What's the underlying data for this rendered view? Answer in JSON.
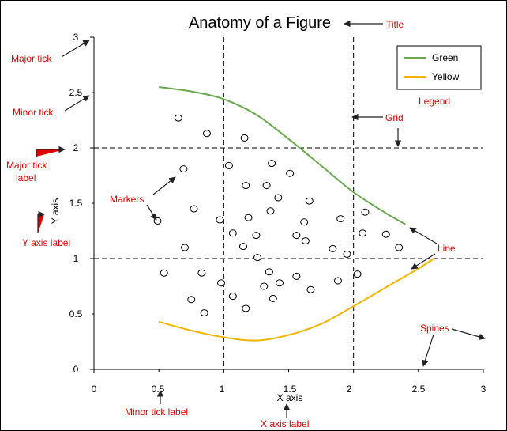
{
  "chart_data": {
    "type": "line",
    "title": "Anatomy of a Figure",
    "xlabel": "X axis",
    "ylabel": "Y axis",
    "xlim": [
      0,
      3
    ],
    "ylim": [
      0,
      3
    ],
    "x_major_ticks": [
      0,
      1,
      2,
      3
    ],
    "x_minor_tick_labels": [
      0.5,
      1.5,
      2.5
    ],
    "y_major_ticks": [
      0,
      1,
      2,
      3
    ],
    "y_minor_tick_labels": [
      0.5,
      1.5,
      2.5
    ],
    "x_tick_labels": [
      "0",
      "0.5",
      "1",
      "1.5",
      "2",
      "2.5",
      "3"
    ],
    "y_tick_labels": [
      "0",
      "0.5",
      "1",
      "1.5",
      "2",
      "2.5",
      "3"
    ],
    "grid": true,
    "legend_position": "top-right",
    "series": [
      {
        "name": "Green",
        "kind": "line",
        "color": "#6aa84f",
        "x": [
          0.5,
          0.75,
          1.0,
          1.25,
          1.5,
          1.75,
          2.0,
          2.25,
          2.4
        ],
        "y": [
          2.55,
          2.51,
          2.44,
          2.3,
          2.08,
          1.84,
          1.6,
          1.41,
          1.31
        ]
      },
      {
        "name": "Yellow",
        "kind": "line",
        "color": "#f0b400",
        "x": [
          0.5,
          0.75,
          1.0,
          1.25,
          1.5,
          1.75,
          2.0,
          2.25,
          2.5,
          2.62
        ],
        "y": [
          0.43,
          0.35,
          0.29,
          0.26,
          0.31,
          0.41,
          0.57,
          0.74,
          0.91,
          1.0
        ]
      },
      {
        "kind": "scatter",
        "color": "#000000",
        "x": [
          0.65,
          0.87,
          1.16,
          0.69,
          1.04,
          1.37,
          1.51,
          1.17,
          1.33,
          1.42,
          0.77,
          1.19,
          1.36,
          1.66,
          0.49,
          0.97,
          1.62,
          1.9,
          2.09,
          1.07,
          1.25,
          1.15,
          1.56,
          1.63,
          2.07,
          2.25,
          0.7,
          1.26,
          1.84,
          1.95,
          2.35,
          0.54,
          0.83,
          1.35,
          1.43,
          1.56,
          0.98,
          1.31,
          1.88,
          2.03,
          1.67,
          0.75,
          1.07,
          1.38,
          0.85,
          1.17
        ],
        "y": [
          2.27,
          2.13,
          2.09,
          1.81,
          1.84,
          1.86,
          1.77,
          1.66,
          1.66,
          1.55,
          1.45,
          1.37,
          1.43,
          1.52,
          1.34,
          1.35,
          1.33,
          1.36,
          1.42,
          1.23,
          1.21,
          1.11,
          1.21,
          1.16,
          1.23,
          1.22,
          1.1,
          1.01,
          1.09,
          1.04,
          1.1,
          0.87,
          0.87,
          0.88,
          0.78,
          0.84,
          0.78,
          0.75,
          0.8,
          0.86,
          0.72,
          0.63,
          0.66,
          0.64,
          0.51,
          0.55
        ]
      }
    ],
    "annotations": [
      {
        "text": "Title",
        "color": "#e00000"
      },
      {
        "text": "Major tick",
        "color": "#e00000"
      },
      {
        "text": "Minor tick",
        "color": "#e00000"
      },
      {
        "text": "Major tick\nlabel",
        "color": "#e00000"
      },
      {
        "text": "Legend",
        "color": "#e00000"
      },
      {
        "text": "Grid",
        "color": "#e00000"
      },
      {
        "text": "Markers",
        "color": "#e00000"
      },
      {
        "text": "Y axis label",
        "color": "#e00000"
      },
      {
        "text": "Line",
        "color": "#e00000"
      },
      {
        "text": "Spines",
        "color": "#e00000"
      },
      {
        "text": "Minor tick label",
        "color": "#e00000"
      },
      {
        "text": "X axis label",
        "color": "#e00000"
      }
    ]
  }
}
